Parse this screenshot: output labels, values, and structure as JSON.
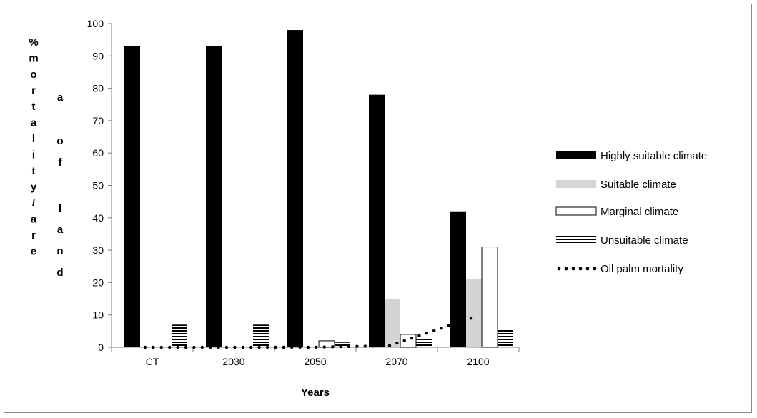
{
  "chart_data": {
    "type": "bar",
    "categories": [
      "CT",
      "2030",
      "2050",
      "2070",
      "2100"
    ],
    "series": [
      {
        "name": "Highly suitable climate",
        "type": "bar",
        "style": "solid-black",
        "values": [
          93,
          93,
          98,
          78,
          42
        ]
      },
      {
        "name": "Suitable climate",
        "type": "bar",
        "style": "solid-grey",
        "values": [
          0,
          0,
          0,
          15,
          21
        ]
      },
      {
        "name": "Marginal climate",
        "type": "bar",
        "style": "white-outline",
        "values": [
          0,
          0,
          2,
          4,
          31
        ]
      },
      {
        "name": "Unsuitable climate",
        "type": "bar",
        "style": "horizontal-stripes",
        "values": [
          7,
          7,
          1.5,
          2.5,
          5.5
        ]
      },
      {
        "name": "Oil palm mortality",
        "type": "line",
        "style": "dotted",
        "values": [
          0,
          0,
          0,
          0.5,
          9
        ]
      }
    ],
    "ylabel_left": "% mortality/are",
    "ylabel_right": "a of land",
    "xlabel": "Years",
    "ylim": [
      0,
      100
    ],
    "yticks": [
      "0",
      "10",
      "20",
      "30",
      "40",
      "50",
      "60",
      "70",
      "80",
      "90",
      "100"
    ],
    "grid": false,
    "legend_position": "right"
  },
  "colors": {
    "highly_suitable": "#000000",
    "suitable": "#d4d4d4",
    "marginal": "#ffffff",
    "unsuitable": "#000000",
    "axis": "#808080"
  }
}
